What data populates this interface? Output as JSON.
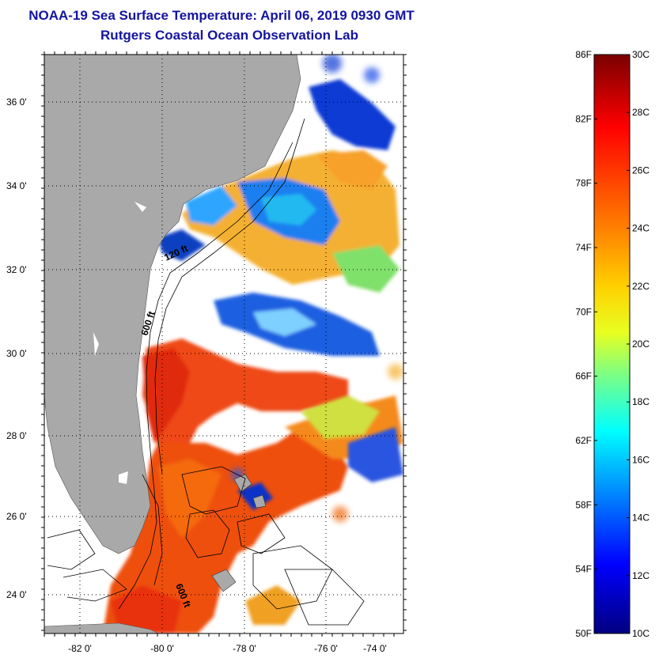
{
  "title": {
    "line1": "NOAA-19 Sea Surface Temperature:  April 06, 2019 0930 GMT",
    "line2": "Rutgers Coastal Ocean Observation Lab"
  },
  "map": {
    "latitude_ticks": [
      "36 0'",
      "34 0'",
      "32 0'",
      "30 0'",
      "28 0'",
      "26 0'",
      "24 0'"
    ],
    "longitude_ticks": [
      "-82 0'",
      "-80 0'",
      "-78 0'",
      "-76 0'",
      "-74 0'"
    ],
    "isobath_labels": [
      "120 ft",
      "600 ft",
      "600 ft"
    ],
    "land_color": "#a9a9a9",
    "cloud_color": "#ffffff"
  },
  "colorbar": {
    "fahrenheit_labels": [
      "86F",
      "82F",
      "78F",
      "74F",
      "70F",
      "66F",
      "62F",
      "58F",
      "54F",
      "50F"
    ],
    "celsius_labels": [
      "30C",
      "28C",
      "26C",
      "24C",
      "22C",
      "20C",
      "18C",
      "16C",
      "14C",
      "12C",
      "10C"
    ],
    "colors": [
      "#800000",
      "#ff0000",
      "#ff8000",
      "#ffff00",
      "#80ff80",
      "#00ffff",
      "#0080ff",
      "#0000ff",
      "#000080"
    ]
  }
}
